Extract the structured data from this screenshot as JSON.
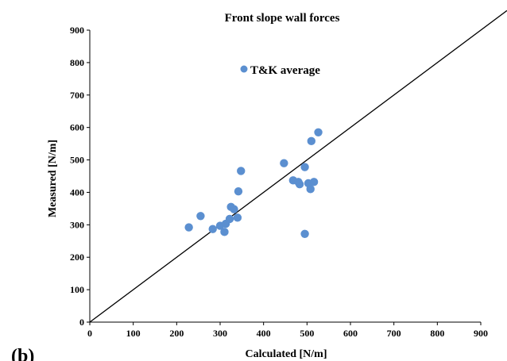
{
  "panel_label": "(b)",
  "chart_data": {
    "type": "scatter",
    "title": "Front slope wall forces",
    "xlabel": "Calculated [N/m]",
    "ylabel": "Measured [N/m]",
    "xlim": [
      0,
      900
    ],
    "ylim": [
      0,
      900
    ],
    "xticks": [
      "0",
      "100",
      "200",
      "300",
      "400",
      "500",
      "600",
      "700",
      "800",
      "900"
    ],
    "yticks": [
      "0",
      "100",
      "200",
      "300",
      "400",
      "500",
      "600",
      "700",
      "800",
      "900"
    ],
    "grid": false,
    "legend": "top-center",
    "marker_color": "#5b8fd0",
    "line_color": "#000000",
    "series": [
      {
        "name": "T&K average",
        "points": [
          [
            228,
            292
          ],
          [
            255,
            327
          ],
          [
            283,
            287
          ],
          [
            300,
            297
          ],
          [
            310,
            278
          ],
          [
            313,
            303
          ],
          [
            322,
            318
          ],
          [
            325,
            355
          ],
          [
            332,
            348
          ],
          [
            340,
            322
          ],
          [
            342,
            403
          ],
          [
            348,
            466
          ],
          [
            447,
            490
          ],
          [
            468,
            437
          ],
          [
            480,
            432
          ],
          [
            483,
            425
          ],
          [
            495,
            478
          ],
          [
            495,
            272
          ],
          [
            503,
            428
          ],
          [
            508,
            410
          ],
          [
            510,
            558
          ],
          [
            516,
            432
          ],
          [
            526,
            585
          ]
        ]
      }
    ],
    "reference_line": {
      "label": "",
      "from": [
        0,
        0
      ],
      "to": [
        900,
        900
      ]
    }
  }
}
